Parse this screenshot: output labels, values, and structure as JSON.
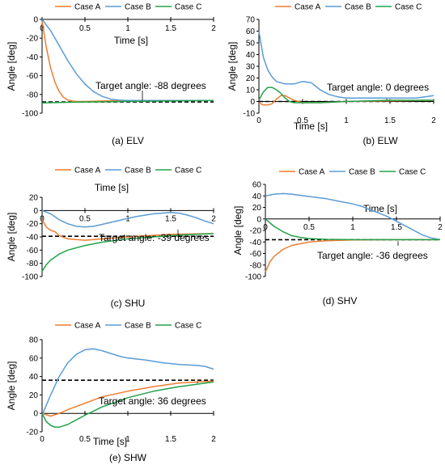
{
  "colors": {
    "case_a": "#ED7D31",
    "case_b": "#5B9BD5",
    "case_c": "#22A34A",
    "axis": "#000000",
    "target_line": "#000000"
  },
  "chart_data": [
    {
      "id": "elv",
      "type": "line",
      "caption": "(a) ELV",
      "xlabel": "Time [s]",
      "ylabel": "Angle [deg]",
      "xlim": [
        0,
        2
      ],
      "ylim": [
        -100,
        0
      ],
      "xticks": [
        "0",
        "0.5",
        "1",
        "1.5",
        "2"
      ],
      "yticks": [
        "0",
        "-20",
        "-40",
        "-60",
        "-80",
        "-100"
      ],
      "legend": [
        "Case A",
        "Case B",
        "Case C"
      ],
      "target": {
        "label": "Target angle: -88 degrees",
        "value": -88
      },
      "series": [
        {
          "name": "Case A",
          "x": [
            0,
            0.05,
            0.1,
            0.15,
            0.2,
            0.25,
            0.3,
            0.35,
            0.4,
            0.5,
            0.7,
            1.0,
            1.5,
            2.0
          ],
          "y": [
            -2,
            -30,
            -52,
            -67,
            -77,
            -83,
            -86,
            -87,
            -87.5,
            -87.5,
            -87,
            -86.5,
            -86.5,
            -86.5
          ]
        },
        {
          "name": "Case B",
          "x": [
            0,
            0.1,
            0.2,
            0.3,
            0.4,
            0.5,
            0.6,
            0.7,
            0.8,
            0.9,
            1.0,
            1.2,
            1.5,
            2.0
          ],
          "y": [
            0,
            -12,
            -28,
            -44,
            -58,
            -69,
            -77,
            -82,
            -85,
            -86,
            -86.5,
            -86.5,
            -86.5,
            -86.5
          ]
        },
        {
          "name": "Case C",
          "x": [
            0,
            0.2,
            0.5,
            1.0,
            1.5,
            2.0
          ],
          "y": [
            -89,
            -88.5,
            -88,
            -87.5,
            -87,
            -86.5
          ]
        }
      ]
    },
    {
      "id": "elw",
      "type": "line",
      "caption": "(b) ELW",
      "xlabel": "Time [s]",
      "ylabel": "Angle [deg]",
      "xlim": [
        0,
        2
      ],
      "ylim": [
        -10,
        70
      ],
      "xticks": [
        "0",
        "0.5",
        "1",
        "1.5",
        "2"
      ],
      "yticks": [
        "70",
        "60",
        "50",
        "40",
        "30",
        "20",
        "10",
        "0",
        "-10"
      ],
      "legend": [
        "Case A",
        "Case B",
        "Case C"
      ],
      "target": {
        "label": "Target angle: 0 degrees",
        "value": 0
      },
      "series": [
        {
          "name": "Case A",
          "x": [
            0,
            0.05,
            0.1,
            0.15,
            0.2,
            0.25,
            0.3,
            0.4,
            0.5,
            0.7,
            1.0,
            1.5,
            2.0
          ],
          "y": [
            -1,
            -3,
            -3,
            -2,
            2,
            5,
            5,
            1,
            -1,
            -1,
            0,
            0.5,
            1
          ]
        },
        {
          "name": "Case B",
          "x": [
            0,
            0.05,
            0.1,
            0.15,
            0.2,
            0.3,
            0.4,
            0.5,
            0.6,
            0.7,
            0.8,
            0.9,
            1.0,
            1.2,
            1.5,
            1.8,
            2.0
          ],
          "y": [
            60,
            38,
            27,
            21,
            17,
            15,
            15,
            17,
            16,
            10,
            6,
            4,
            3,
            3,
            3,
            3,
            5
          ]
        },
        {
          "name": "Case C",
          "x": [
            0,
            0.05,
            0.1,
            0.15,
            0.2,
            0.25,
            0.3,
            0.35,
            0.4,
            0.5,
            0.7,
            1.0,
            1.5,
            2.0
          ],
          "y": [
            1,
            8,
            12,
            12,
            10,
            7,
            3,
            0,
            -1,
            -1,
            -1,
            0,
            1,
            1
          ]
        }
      ]
    },
    {
      "id": "shu",
      "type": "line",
      "caption": "(c) SHU",
      "xlabel": "Time [s]",
      "ylabel": "Angle [deg]",
      "xlim": [
        0,
        2
      ],
      "ylim": [
        -100,
        20
      ],
      "xticks": [
        "0",
        "0.5",
        "1",
        "1.5",
        "2"
      ],
      "yticks": [
        "20",
        "0",
        "-20",
        "-40",
        "-60",
        "-80",
        "-100"
      ],
      "legend": [
        "Case A",
        "Case B",
        "Case C"
      ],
      "target": {
        "label": "Target angle: -39 degrees",
        "value": -39
      },
      "series": [
        {
          "name": "Case A",
          "x": [
            0,
            0.05,
            0.1,
            0.15,
            0.2,
            0.3,
            0.5,
            0.7,
            1.0,
            1.5,
            2.0
          ],
          "y": [
            -14,
            -25,
            -30,
            -32,
            -38,
            -43,
            -45,
            -43,
            -40,
            -36,
            -35
          ]
        },
        {
          "name": "Case B",
          "x": [
            0,
            0.1,
            0.2,
            0.3,
            0.4,
            0.5,
            0.6,
            0.7,
            0.8,
            0.9,
            1.0,
            1.1,
            1.2,
            1.3,
            1.4,
            1.5,
            1.6,
            1.7,
            1.8,
            1.9,
            2.0
          ],
          "y": [
            0,
            -5,
            -14,
            -20,
            -24,
            -25,
            -24,
            -21,
            -18,
            -15,
            -12,
            -9,
            -7,
            -5,
            -4,
            -3,
            -4,
            -7,
            -11,
            -16,
            -20
          ]
        },
        {
          "name": "Case C",
          "x": [
            0,
            0.05,
            0.1,
            0.2,
            0.3,
            0.5,
            0.7,
            1.0,
            1.3,
            1.6,
            2.0
          ],
          "y": [
            -92,
            -82,
            -75,
            -66,
            -60,
            -53,
            -48,
            -43,
            -40,
            -37,
            -35
          ]
        }
      ]
    },
    {
      "id": "shv",
      "type": "line",
      "caption": "(d) SHV",
      "xlabel": "Time [s]",
      "ylabel": "Angle [deg]",
      "xlim": [
        0,
        2
      ],
      "ylim": [
        -100,
        60
      ],
      "xticks": [
        "0",
        "0.5",
        "1",
        "1.5",
        "2"
      ],
      "yticks": [
        "60",
        "40",
        "20",
        "0",
        "-20",
        "-40",
        "-60",
        "-80",
        "-100"
      ],
      "legend": [
        "Case A",
        "Case B",
        "Case C"
      ],
      "target": {
        "label": "Target angle: -36 degrees",
        "value": -36
      },
      "series": [
        {
          "name": "Case A",
          "x": [
            0,
            0.05,
            0.1,
            0.2,
            0.3,
            0.5,
            0.7,
            1.0,
            1.5,
            2.0
          ],
          "y": [
            -92,
            -75,
            -65,
            -53,
            -46,
            -40,
            -38,
            -36.5,
            -36,
            -36
          ]
        },
        {
          "name": "Case B",
          "x": [
            0,
            0.1,
            0.2,
            0.3,
            0.5,
            0.7,
            0.9,
            1.0,
            1.1,
            1.2,
            1.3,
            1.4,
            1.5,
            1.6,
            1.7,
            1.8,
            1.9,
            2.0
          ],
          "y": [
            40,
            43,
            44,
            43,
            39,
            35,
            29,
            26,
            22,
            16,
            10,
            4,
            -4,
            -12,
            -20,
            -28,
            -33,
            -36
          ]
        },
        {
          "name": "Case C",
          "x": [
            0,
            0.1,
            0.2,
            0.3,
            0.4,
            0.5,
            0.7,
            1.0,
            1.5,
            2.0
          ],
          "y": [
            0,
            -13,
            -22,
            -29,
            -32,
            -34,
            -35.5,
            -36,
            -36,
            -36
          ]
        }
      ]
    },
    {
      "id": "shw",
      "type": "line",
      "caption": "(e) SHW",
      "xlabel": "Time [s]",
      "ylabel": "Angle [deg]",
      "xlim": [
        0,
        2
      ],
      "ylim": [
        -20,
        80
      ],
      "xticks": [
        "0",
        "0.5",
        "1",
        "1.5",
        "2"
      ],
      "yticks": [
        "80",
        "60",
        "40",
        "20",
        "0",
        "-20"
      ],
      "legend": [
        "Case A",
        "Case B",
        "Case C"
      ],
      "target": {
        "label": "Target angle: 36 degrees",
        "value": 36
      },
      "series": [
        {
          "name": "Case A",
          "x": [
            0,
            0.1,
            0.2,
            0.3,
            0.5,
            0.7,
            1.0,
            1.3,
            1.6,
            2.0
          ],
          "y": [
            0,
            -3,
            0,
            4,
            11,
            18,
            24,
            29,
            33,
            35
          ]
        },
        {
          "name": "Case B",
          "x": [
            0,
            0.1,
            0.2,
            0.3,
            0.4,
            0.5,
            0.6,
            0.7,
            0.8,
            0.9,
            1.0,
            1.2,
            1.4,
            1.6,
            1.8,
            1.9,
            2.0
          ],
          "y": [
            -2,
            20,
            40,
            55,
            64,
            69,
            70,
            68,
            65,
            62,
            60,
            58,
            55,
            53,
            52,
            51,
            48
          ]
        },
        {
          "name": "Case C",
          "x": [
            0,
            0.05,
            0.1,
            0.15,
            0.2,
            0.3,
            0.4,
            0.5,
            0.7,
            1.0,
            1.3,
            1.6,
            2.0
          ],
          "y": [
            0,
            -9,
            -13,
            -15,
            -15,
            -12,
            -7,
            -2,
            7,
            17,
            24,
            29,
            34
          ]
        }
      ]
    }
  ]
}
